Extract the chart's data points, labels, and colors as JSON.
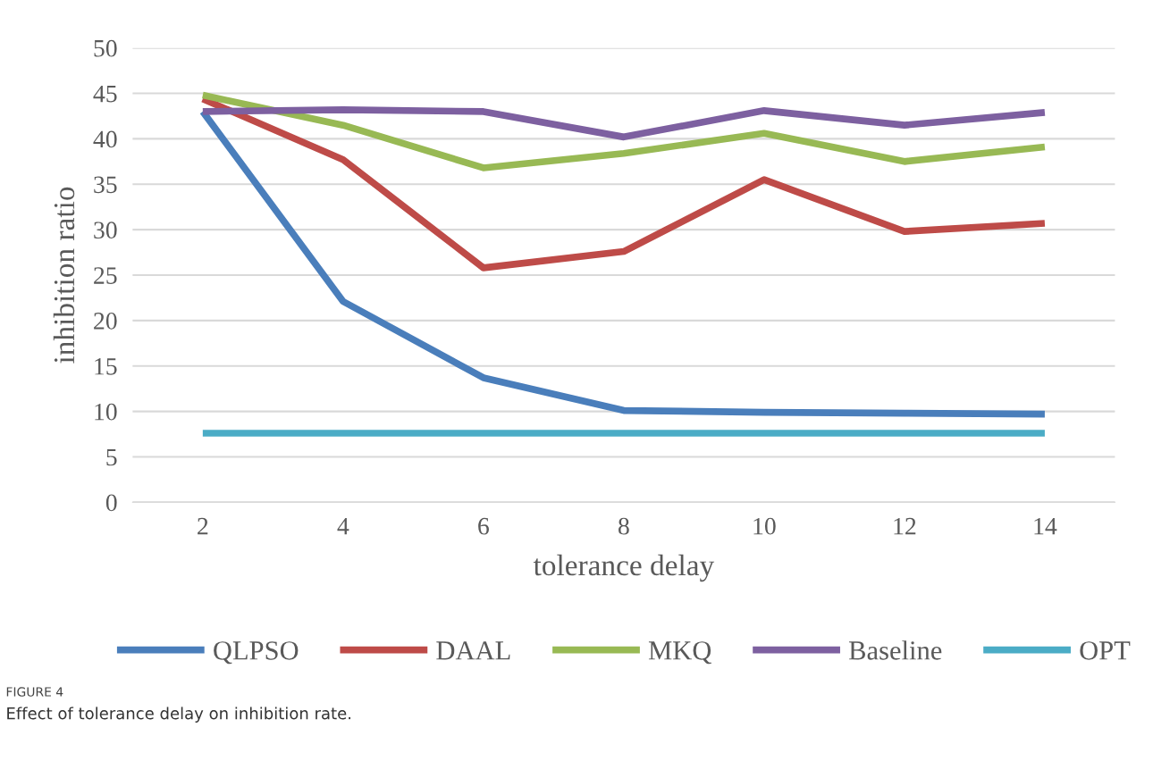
{
  "chart_data": {
    "type": "line",
    "xlabel": "tolerance delay",
    "ylabel": "inhibition ratio",
    "categories": [
      "2",
      "4",
      "6",
      "8",
      "10",
      "12",
      "14"
    ],
    "series": [
      {
        "name": "QLPSO",
        "color": "#4a7ebb",
        "values": [
          43.0,
          22.1,
          13.7,
          10.1,
          9.9,
          9.8,
          9.7
        ]
      },
      {
        "name": "DAAL",
        "color": "#be4b48",
        "values": [
          44.4,
          37.7,
          25.8,
          27.6,
          35.5,
          29.8,
          30.7
        ]
      },
      {
        "name": "MKQ",
        "color": "#98b954",
        "values": [
          44.8,
          41.5,
          36.8,
          38.4,
          40.6,
          37.5,
          39.1
        ]
      },
      {
        "name": "Baseline",
        "color": "#7d60a0",
        "values": [
          43.0,
          43.2,
          43.0,
          40.2,
          43.1,
          41.5,
          42.9
        ]
      },
      {
        "name": "OPT",
        "color": "#4bacc6",
        "values": [
          7.6,
          7.6,
          7.6,
          7.6,
          7.6,
          7.6,
          7.6
        ]
      }
    ],
    "ylim": [
      0,
      50
    ],
    "yticks": [
      0,
      5,
      10,
      15,
      20,
      25,
      30,
      35,
      40,
      45,
      50
    ],
    "grid": "y",
    "legend": "bottom",
    "marker": "none",
    "line_style": "solid",
    "annotations": [
      "FIGURE 4",
      "Effect of tolerance delay on inhibition rate."
    ]
  }
}
